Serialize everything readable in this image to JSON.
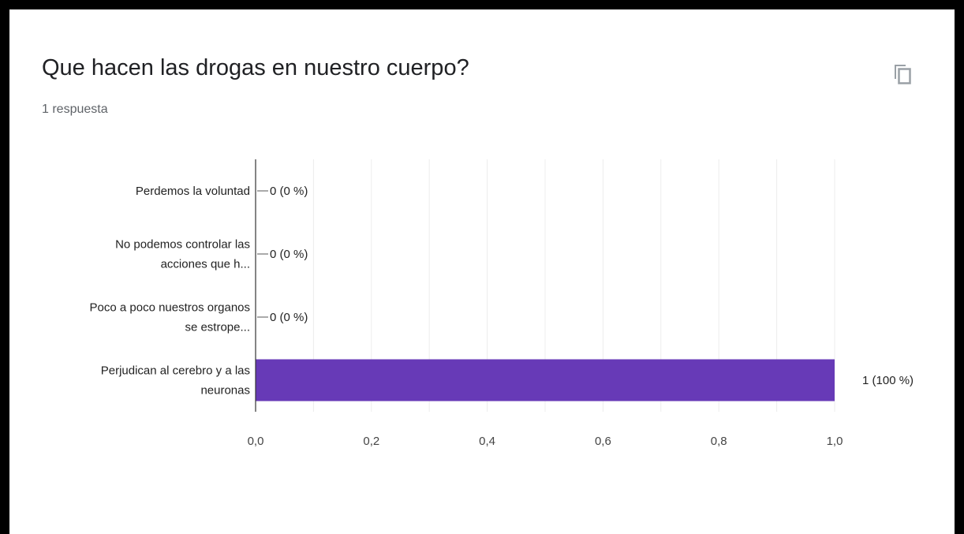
{
  "header": {
    "title": "Que hacen las drogas en nuestro cuerpo?",
    "response_count": "1 respuesta",
    "copy_icon": "copy-icon"
  },
  "chart_data": {
    "type": "bar",
    "orientation": "horizontal",
    "categories": [
      [
        "Perdemos la voluntad"
      ],
      [
        "No podemos controlar las",
        "acciones que h..."
      ],
      [
        "Poco a poco nuestros organos",
        "se estrope..."
      ],
      [
        "Perjudican al cerebro y a las",
        "neuronas"
      ]
    ],
    "values": [
      0,
      0,
      0,
      1
    ],
    "value_labels": [
      "0 (0 %)",
      "0 (0 %)",
      "0 (0 %)",
      "1 (100 %)"
    ],
    "xlim": [
      0,
      1
    ],
    "x_ticks": [
      0,
      0.2,
      0.4,
      0.6,
      0.8,
      1.0
    ],
    "x_tick_labels": [
      "0,0",
      "0,2",
      "0,4",
      "0,6",
      "0,8",
      "1,0"
    ],
    "bar_color": "#673ab7",
    "grid": true
  }
}
